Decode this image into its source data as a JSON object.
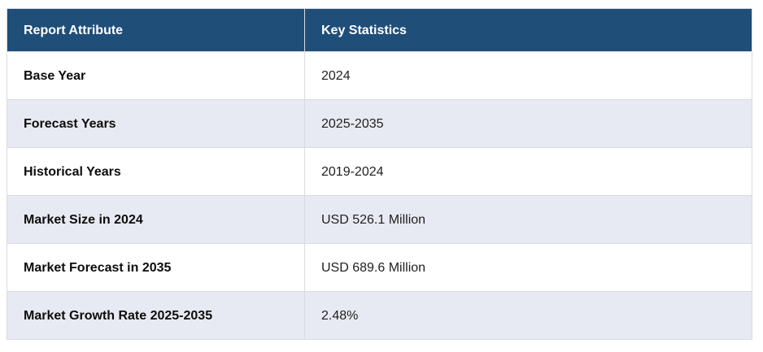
{
  "table": {
    "header": {
      "attribute": "Report Attribute",
      "statistic": "Key Statistics"
    },
    "rows": [
      {
        "attribute": "Base Year",
        "value": "2024"
      },
      {
        "attribute": "Forecast Years",
        "value": "2025-2035"
      },
      {
        "attribute": "Historical Years",
        "value": "2019-2024"
      },
      {
        "attribute": "Market Size in 2024",
        "value": "USD 526.1 Million"
      },
      {
        "attribute": "Market Forecast in 2035",
        "value": "USD 689.6 Million"
      },
      {
        "attribute": "Market Growth Rate 2025-2035",
        "value": "2.48%"
      }
    ],
    "colors": {
      "header_bg": "#1f4e79",
      "header_text": "#ffffff",
      "row_bg": "#ffffff",
      "row_alt_bg": "#e8eaf3",
      "border": "#d9dbe1",
      "label_text": "#0d0d0d",
      "value_text": "#1f1f1f"
    }
  },
  "chart_data": {
    "type": "table",
    "title": "Report Attribute / Key Statistics",
    "columns": [
      "Report Attribute",
      "Key Statistics"
    ],
    "rows": [
      [
        "Base Year",
        "2024"
      ],
      [
        "Forecast Years",
        "2025-2035"
      ],
      [
        "Historical Years",
        "2019-2024"
      ],
      [
        "Market Size in 2024",
        "USD 526.1 Million"
      ],
      [
        "Market Forecast in 2035",
        "USD 689.6 Million"
      ],
      [
        "Market Growth Rate 2025-2035",
        "2.48%"
      ]
    ]
  }
}
